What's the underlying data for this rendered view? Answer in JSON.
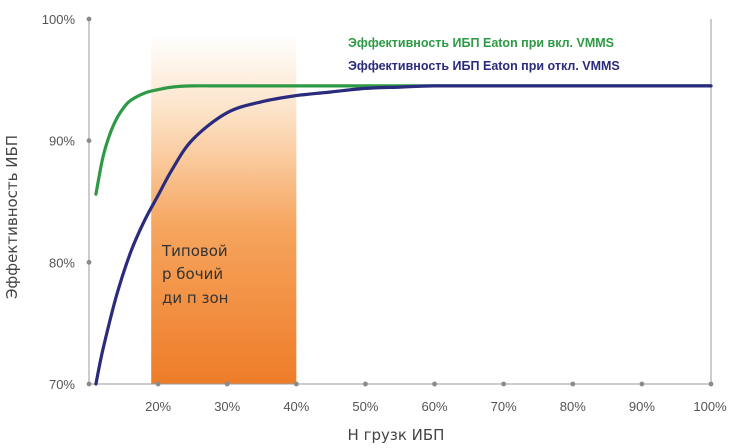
{
  "chart_data": {
    "type": "line",
    "ylabel": "Эффективность ИБП",
    "xlabel": "Н грузк ИБП",
    "xlim": [
      10,
      100
    ],
    "ylim": [
      70,
      100
    ],
    "x_ticks": [
      20,
      30,
      40,
      50,
      60,
      70,
      80,
      90,
      100
    ],
    "x_tick_labels": [
      "20%",
      "30%",
      "40%",
      "50%",
      "60%",
      "70%",
      "80%",
      "90%",
      "100%"
    ],
    "y_ticks": [
      70,
      80,
      90,
      100
    ],
    "y_tick_labels": [
      "70%",
      "80%",
      "90%",
      "100%"
    ],
    "grid": false,
    "legend_position": "top-right",
    "series": [
      {
        "name": "Эффективность ИБП Eaton при вкл. VMMS",
        "color": "#2e9a45",
        "x": [
          11,
          12,
          13,
          14,
          15,
          16,
          18,
          20,
          22,
          25,
          30,
          40,
          50,
          60,
          70,
          80,
          90,
          100
        ],
        "y": [
          85.6,
          88.6,
          90.5,
          91.8,
          92.7,
          93.3,
          93.9,
          94.2,
          94.4,
          94.5,
          94.5,
          94.5,
          94.5,
          94.5,
          94.5,
          94.5,
          94.5,
          94.5
        ]
      },
      {
        "name": "Эффективность ИБП Eaton при откл. VMMS",
        "color": "#2b2b7e",
        "x": [
          11,
          12,
          14,
          16,
          18,
          20,
          22,
          25,
          30,
          35,
          40,
          45,
          50,
          55,
          60,
          70,
          80,
          90,
          100
        ],
        "y": [
          70.0,
          72.8,
          77.3,
          80.8,
          83.4,
          85.5,
          87.6,
          90.1,
          92.3,
          93.2,
          93.7,
          94.0,
          94.3,
          94.4,
          94.5,
          94.5,
          94.5,
          94.5,
          94.5
        ]
      }
    ],
    "highlight_band": {
      "x_range": [
        19,
        40
      ],
      "label_lines": [
        "Типовой",
        "р бочий",
        "ди п зон"
      ]
    }
  }
}
